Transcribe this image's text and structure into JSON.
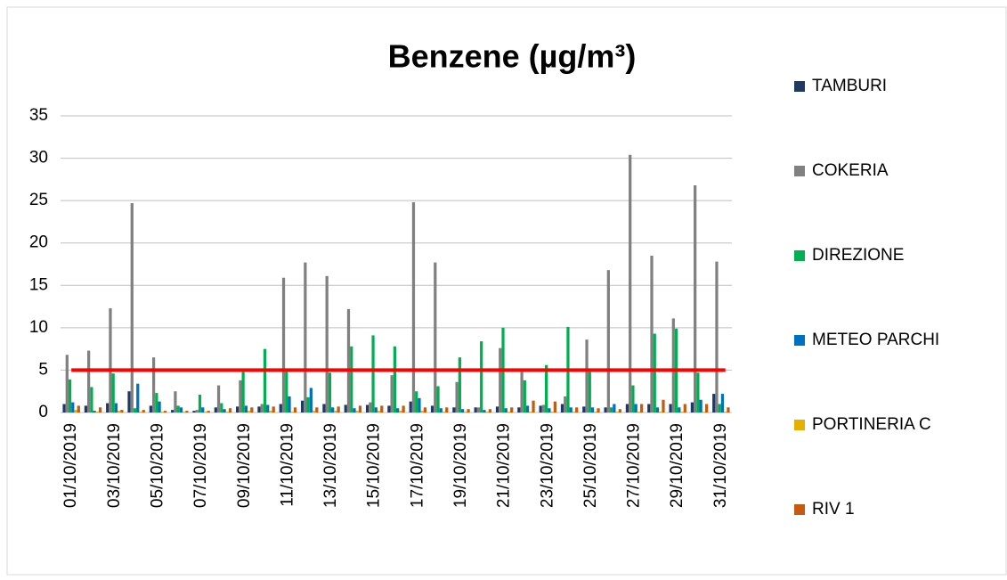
{
  "chart_data": {
    "type": "bar",
    "title": "Benzene (µg/m³)",
    "categories": [
      "01/10/2019",
      null,
      "03/10/2019",
      null,
      "05/10/2019",
      null,
      "07/10/2019",
      null,
      "09/10/2019",
      null,
      "11/10/2019",
      null,
      "13/10/2019",
      null,
      "15/10/2019",
      null,
      "17/10/2019",
      null,
      "19/10/2019",
      null,
      "21/10/2019",
      null,
      "23/10/2019",
      null,
      "25/10/2019",
      null,
      "27/10/2019",
      null,
      "29/10/2019",
      null,
      "31/10/2019"
    ],
    "series": [
      {
        "name": "TAMBURI",
        "color": "#1f3864",
        "values": [
          1.0,
          0.8,
          1.1,
          2.5,
          0.8,
          0.3,
          0.2,
          0.6,
          0.7,
          0.7,
          1.0,
          1.4,
          1.0,
          0.9,
          0.9,
          0.8,
          1.3,
          0.8,
          0.6,
          0.6,
          0.7,
          0.6,
          0.8,
          1.0,
          0.7,
          0.6,
          1.0,
          1.0,
          1.0,
          1.2,
          2.2
        ]
      },
      {
        "name": "COKERIA",
        "color": "#808080",
        "values": [
          6.8,
          7.3,
          12.3,
          24.7,
          6.5,
          2.5,
          0.3,
          3.2,
          3.8,
          1.0,
          15.9,
          17.7,
          16.1,
          12.2,
          1.2,
          4.4,
          24.8,
          17.7,
          3.6,
          0.6,
          7.6,
          4.8,
          0.9,
          1.9,
          8.6,
          16.8,
          30.4,
          18.5,
          11.1,
          26.8,
          17.8
        ]
      },
      {
        "name": "DIREZIONE",
        "color": "#00b050",
        "values": [
          3.9,
          3.0,
          4.6,
          0.5,
          2.3,
          0.8,
          2.1,
          1.1,
          4.8,
          7.5,
          4.8,
          1.8,
          4.7,
          7.8,
          9.1,
          7.8,
          2.5,
          3.1,
          6.5,
          8.4,
          10.0,
          3.8,
          5.6,
          10.1,
          4.8,
          0.6,
          3.2,
          9.3,
          9.9,
          4.7,
          1.0
        ]
      },
      {
        "name": "METEO PARCHI",
        "color": "#0070c0",
        "values": [
          1.2,
          0.2,
          1.1,
          3.4,
          1.3,
          0.6,
          0.6,
          0.4,
          0.8,
          0.9,
          1.9,
          2.9,
          0.6,
          0.5,
          0.6,
          0.5,
          1.7,
          0.5,
          0.4,
          0.3,
          0.5,
          0.8,
          0.5,
          0.6,
          0.6,
          1.0,
          1.0,
          0.6,
          0.6,
          1.5,
          2.2
        ]
      },
      {
        "name": "PORTINERIA C",
        "color": "#e6b000",
        "values": [
          0.3,
          0.1,
          0.2,
          0.1,
          0.1,
          0.1,
          0.1,
          0.1,
          0.2,
          0.2,
          0.1,
          0.2,
          0.2,
          0.2,
          0.2,
          0.2,
          0.2,
          0.1,
          0.1,
          0.1,
          0.1,
          0.1,
          0.1,
          0.1,
          0.1,
          0.1,
          0.1,
          0.1,
          0.1,
          0.1,
          0.1
        ]
      },
      {
        "name": "RIV 1",
        "color": "#c55a11",
        "values": [
          0.8,
          0.6,
          0.3,
          0.3,
          0.2,
          0.2,
          0.2,
          0.5,
          0.6,
          0.7,
          0.6,
          0.6,
          0.7,
          0.8,
          0.8,
          0.8,
          0.6,
          0.6,
          0.4,
          0.4,
          0.6,
          1.4,
          1.3,
          0.6,
          0.5,
          0.4,
          1.0,
          1.5,
          1.0,
          1.0,
          0.6
        ]
      }
    ],
    "ylim": [
      0,
      35
    ],
    "yticks": [
      0,
      5,
      10,
      15,
      20,
      25,
      30,
      35
    ],
    "grid": true,
    "threshold": 5,
    "threshold_color": "#ff0000",
    "legend": "right"
  }
}
